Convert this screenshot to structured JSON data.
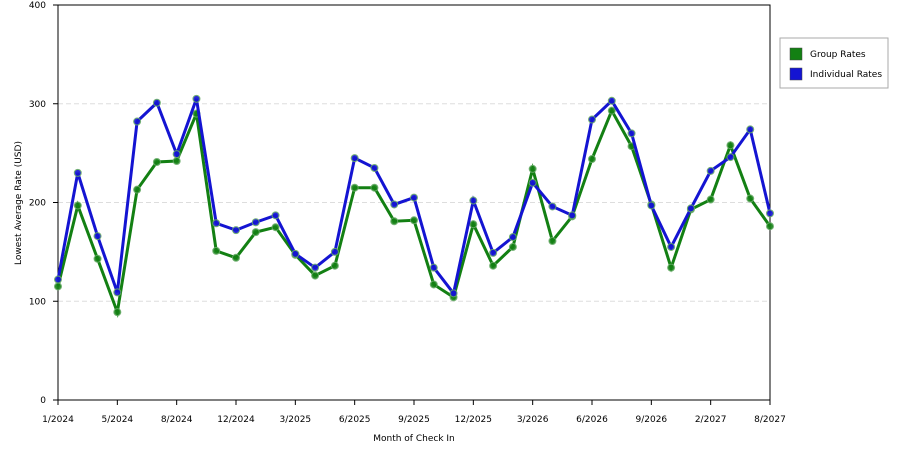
{
  "chart_data": {
    "type": "line",
    "x_label": "Month of Check In",
    "y_label": "Lowest Average Rate (USD)",
    "categories": [
      "1/2024",
      null,
      null,
      "5/2024",
      null,
      null,
      "8/2024",
      null,
      null,
      "12/2024",
      null,
      null,
      "3/2025",
      null,
      null,
      "6/2025",
      null,
      null,
      "9/2025",
      null,
      null,
      "12/2025",
      null,
      null,
      "3/2026",
      null,
      null,
      "6/2026",
      null,
      null,
      "9/2026",
      null,
      null,
      "2/2027",
      null,
      null,
      "8/2027"
    ],
    "series": [
      {
        "name": "Group Rates",
        "color": "#138013",
        "values": [
          115,
          197,
          143,
          89,
          213,
          241,
          242,
          290,
          151,
          144,
          170,
          175,
          147,
          126,
          136,
          215,
          215,
          181,
          182,
          117,
          104,
          178,
          136,
          155,
          234,
          161,
          186,
          244,
          293,
          257,
          198,
          134,
          193,
          203,
          258,
          204,
          176
        ]
      },
      {
        "name": "Individual Rates",
        "color": "#1414d2",
        "values": [
          122,
          230,
          166,
          109,
          282,
          301,
          249,
          305,
          179,
          172,
          180,
          187,
          148,
          134,
          150,
          245,
          235,
          198,
          205,
          134,
          108,
          202,
          149,
          165,
          220,
          196,
          187,
          284,
          303,
          270,
          197,
          155,
          194,
          232,
          246,
          274,
          189
        ]
      }
    ],
    "ylim": [
      0,
      400
    ],
    "yticks": [
      0,
      100,
      200,
      300,
      400
    ],
    "grid": true,
    "legend": "right"
  }
}
